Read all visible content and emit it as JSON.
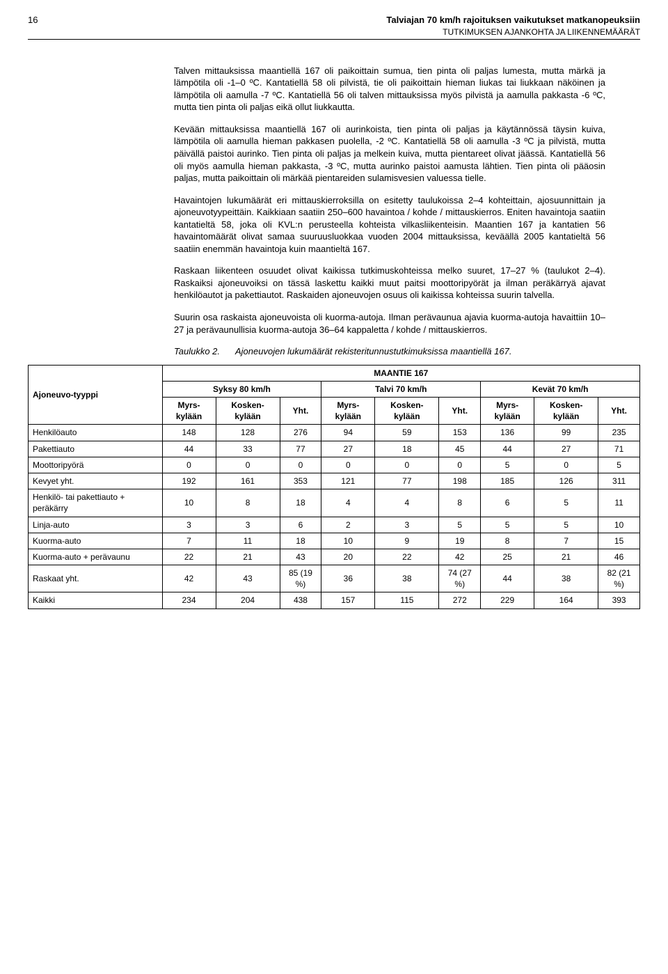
{
  "page_number": "16",
  "header_title": "Talviajan 70 km/h rajoituksen vaikutukset matkanopeuksiin",
  "header_sub": "TUTKIMUKSEN AJANKOHTA JA LIIKENNEMÄÄRÄT",
  "paragraphs": {
    "p1": "Talven mittauksissa maantiellä 167 oli paikoittain sumua, tien pinta oli paljas lumesta, mutta märkä ja lämpötila oli -1–0 ºC. Kantatiellä 58 oli pilvistä, tie oli paikoittain hieman liukas tai liukkaan näköinen ja lämpötila oli aamulla -7 ºC. Kantatiellä 56 oli talven mittauksissa myös pilvistä ja aamulla pakkasta -6 ºC, mutta tien pinta oli paljas eikä ollut liukkautta.",
    "p2": "Kevään mittauksissa maantiellä 167 oli aurinkoista, tien pinta oli paljas ja käytännössä täysin kuiva, lämpötila oli aamulla hieman pakkasen puolella, -2 ºC. Kantatiellä 58 oli aamulla -3 ºC ja pilvistä, mutta päivällä paistoi aurinko. Tien pinta oli paljas ja melkein kuiva, mutta pientareet olivat jäässä. Kantatiellä 56 oli myös aamulla hieman pakkasta, -3 ºC, mutta aurinko paistoi aamusta lähtien. Tien pinta oli pääosin paljas, mutta paikoittain oli märkää pientareiden sulamisvesien valuessa tielle.",
    "p3": "Havaintojen lukumäärät eri mittauskierroksilla on esitetty taulukoissa 2–4 kohteittain, ajosuunnittain ja ajoneuvotyypeittäin. Kaikkiaan saatiin 250–600 havaintoa / kohde / mittauskierros. Eniten havaintoja saatiin kantatieltä 58, joka oli KVL:n perusteella kohteista vilkasliikenteisin. Maantien 167 ja kantatien 56 havaintomäärät olivat samaa suuruusluokkaa vuoden 2004 mittauksissa, keväällä 2005 kantatieltä 56 saatiin enemmän havaintoja kuin maantieltä 167.",
    "p4": "Raskaan liikenteen osuudet olivat kaikissa tutkimuskohteissa melko suuret, 17–27 % (taulukot 2–4). Raskaiksi ajoneuvoiksi on tässä laskettu kaikki muut paitsi moottoripyörät ja ilman peräkärryä ajavat henkilöautot ja pakettiautot. Raskaiden ajoneuvojen osuus oli kaikissa kohteissa suurin talvella.",
    "p5": "Suurin osa raskaista ajoneuvoista oli kuorma-autoja. Ilman perävaunua ajavia kuorma-autoja havaittiin 10–27 ja perävaunullisia kuorma-autoja 36–64 kappaletta / kohde / mittauskierros."
  },
  "caption": {
    "label": "Taulukko 2.",
    "text": "Ajoneuvojen lukumäärät rekisteritunnustutkimuksissa maantiellä 167."
  },
  "table": {
    "super_title": "MAANTIE 167",
    "col_group_1": "Syksy 80 km/h",
    "col_group_2": "Talvi 70 km/h",
    "col_group_3": "Kevät 70 km/h",
    "row_head": "Ajoneuvo-tyyppi",
    "sub_heads": [
      "Myrs-kylään",
      "Kosken-kylään",
      "Yht.",
      "Myrs-kylään",
      "Kosken-kylään",
      "Yht.",
      "Myrs-kylään",
      "Kosken-kylään",
      "Yht."
    ],
    "rows": [
      {
        "label": "Henkilöauto",
        "cells": [
          "148",
          "128",
          "276",
          "94",
          "59",
          "153",
          "136",
          "99",
          "235"
        ]
      },
      {
        "label": "Pakettiauto",
        "cells": [
          "44",
          "33",
          "77",
          "27",
          "18",
          "45",
          "44",
          "27",
          "71"
        ]
      },
      {
        "label": "Moottoripyörä",
        "cells": [
          "0",
          "0",
          "0",
          "0",
          "0",
          "0",
          "5",
          "0",
          "5"
        ]
      },
      {
        "label": "Kevyet yht.",
        "cells": [
          "192",
          "161",
          "353",
          "121",
          "77",
          "198",
          "185",
          "126",
          "311"
        ]
      },
      {
        "label": "Henkilö- tai pakettiauto + peräkärry",
        "cells": [
          "10",
          "8",
          "18",
          "4",
          "4",
          "8",
          "6",
          "5",
          "11"
        ]
      },
      {
        "label": "Linja-auto",
        "cells": [
          "3",
          "3",
          "6",
          "2",
          "3",
          "5",
          "5",
          "5",
          "10"
        ]
      },
      {
        "label": "Kuorma-auto",
        "cells": [
          "7",
          "11",
          "18",
          "10",
          "9",
          "19",
          "8",
          "7",
          "15"
        ]
      },
      {
        "label": "Kuorma-auto + perävaunu",
        "cells": [
          "22",
          "21",
          "43",
          "20",
          "22",
          "42",
          "25",
          "21",
          "46"
        ]
      },
      {
        "label": "Raskaat yht.",
        "cells": [
          "42",
          "43",
          "85 (19 %)",
          "36",
          "38",
          "74 (27 %)",
          "44",
          "38",
          "82 (21 %)"
        ]
      },
      {
        "label": "Kaikki",
        "cells": [
          "234",
          "204",
          "438",
          "157",
          "115",
          "272",
          "229",
          "164",
          "393"
        ]
      }
    ]
  }
}
